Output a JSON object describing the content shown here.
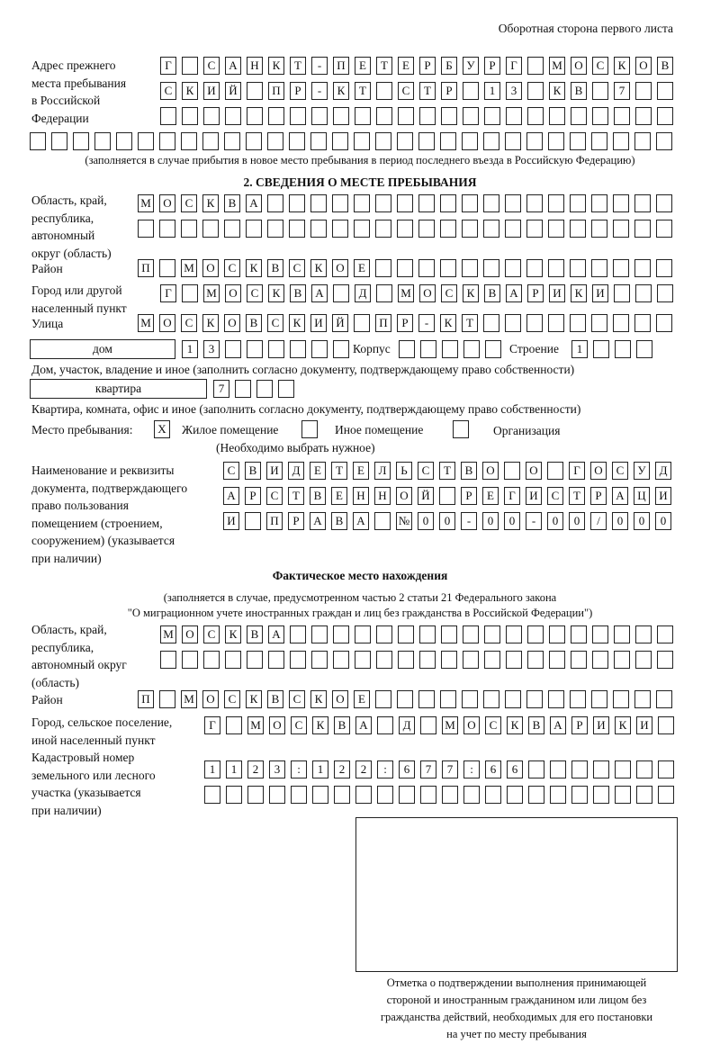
{
  "header": "Оборотная сторона первого листа",
  "prev_address": {
    "label": [
      "Адрес прежнего",
      "места пребывания",
      "в Российской",
      "Федерации"
    ],
    "rows": [
      "Г САНКТ-ПЕТЕРБУРГ МОСКОВ",
      "СКИЙ ПР-КТ СТР 13 КВ 7  ",
      "                        ",
      "                              "
    ],
    "note": "(заполняется в случае прибытия в новое место пребывания в период последнего въезда в Российскую Федерацию)"
  },
  "section2": {
    "title": "2. СВЕДЕНИЯ О МЕСТЕ ПРЕБЫВАНИЯ",
    "region_label": [
      "Область, край,",
      "республика,",
      "автономный",
      "округ (область)"
    ],
    "region_rows": [
      "МОСКВА                   ",
      "                         "
    ],
    "district_label": "Район",
    "district": "П МОСКВСКОЕ              ",
    "city_label": [
      "Город или другой",
      "населенный пункт"
    ],
    "city": "Г МОСКВА Д МОСКВАРИКИ   ",
    "street_label": "Улица",
    "street": "МОСКОВСКИЙ ПР-КТ         ",
    "house_type": "дом",
    "house": "13      ",
    "korpus_label": "Корпус",
    "korpus": "     ",
    "building_label": "Строение",
    "building": "1   ",
    "house_note": "Дом, участок, владение и иное (заполнить согласно документу, подтверждающему право собственности)",
    "flat_type": "квартира",
    "flat": "7   ",
    "flat_note": "Квартира, комната, офис и иное (заполнить согласно документу, подтверждающему право собственности)",
    "stay_label": "Место пребывания:",
    "stay_options": [
      {
        "label": "Жилое помещение",
        "mark": "X"
      },
      {
        "label": "Иное помещение",
        "mark": ""
      },
      {
        "label": "Организация",
        "mark": ""
      }
    ],
    "stay_note": "(Необходимо выбрать нужное)",
    "doc_label": [
      "Наименование и реквизиты",
      "документа, подтверждающего",
      "право пользования",
      "помещением (строением,",
      "сооружением) (указывается",
      "при наличии)"
    ],
    "doc_rows": [
      "СВИДЕТЕЛЬСТВО О ГОСУД",
      "АРСТВЕННОЙ РЕГИСТРАЦИ",
      "И ПРАВА №00-00-00/000"
    ]
  },
  "actual": {
    "title": "Фактическое место нахождения",
    "subtitle": [
      "(заполняется в случае, предусмотренном частью 2 статьи 21 Федерального закона",
      "\"О миграционном учете иностранных граждан и лиц без гражданства в Российской Федерации\")"
    ],
    "region_label": [
      "Область, край,",
      "республика,",
      "автономный округ",
      "(область)"
    ],
    "region_rows": [
      "МОСКВА                  ",
      "                        "
    ],
    "district_label": "Район",
    "district": "П МОСКВСКОЕ              ",
    "city_label": [
      "Город, сельское поселение,",
      "иной населенный пункт"
    ],
    "city": "Г МОСКВА Д МОСКВАРИКИ ",
    "cadastre_label": [
      "Кадастровый номер",
      "земельного или лесного",
      "участка (указывается",
      "при наличии)"
    ],
    "cadastre_rows": [
      "1123:122:677:66       ",
      "                      "
    ]
  },
  "stamp_caption": [
    "Отметка о подтверждении выполнения принимающей",
    "стороной и иностранным гражданином или лицом без",
    "гражданства действий, необходимых для его постановки",
    "на учет по месту пребывания"
  ]
}
